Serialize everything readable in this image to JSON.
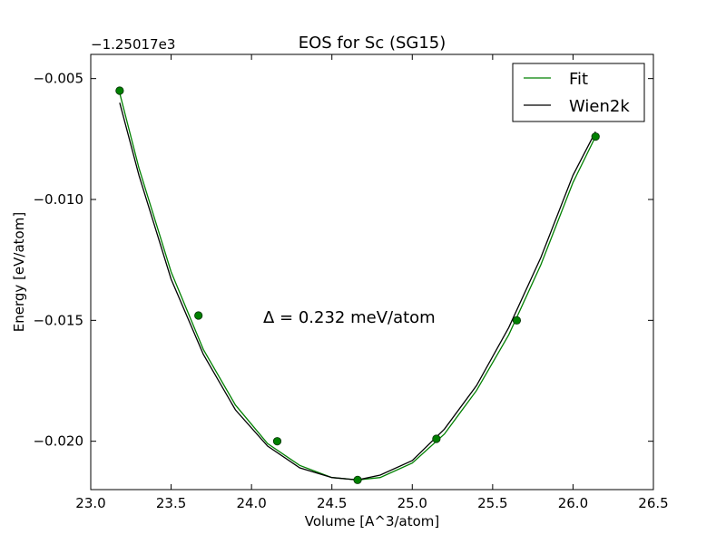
{
  "chart_data": {
    "type": "line",
    "title": "EOS for Sc (SG15)",
    "xlabel": "Volume [A^3/atom]",
    "ylabel": "Energy [eV/atom]",
    "offset_text": "−1.25017e3",
    "annotation": "Δ = 0.232 meV/atom",
    "xlim": [
      23.0,
      26.5
    ],
    "ylim": [
      -0.022,
      -0.004
    ],
    "x_ticks": [
      23.0,
      23.5,
      24.0,
      24.5,
      25.0,
      25.5,
      26.0,
      26.5
    ],
    "x_tick_labels": [
      "23.0",
      "23.5",
      "24.0",
      "24.5",
      "25.0",
      "25.5",
      "26.0",
      "26.5"
    ],
    "y_ticks": [
      -0.005,
      -0.01,
      -0.015,
      -0.02
    ],
    "y_tick_labels": [
      "−0.005",
      "−0.010",
      "−0.015",
      "−0.020"
    ],
    "legend_position": "top-right",
    "grid": false,
    "series": [
      {
        "name": "Fit",
        "kind": "line",
        "color": "#008000",
        "x": [
          23.18,
          23.3,
          23.5,
          23.7,
          23.9,
          24.1,
          24.3,
          24.5,
          24.66,
          24.8,
          25.0,
          25.2,
          25.4,
          25.6,
          25.8,
          26.0,
          26.14
        ],
        "y": [
          -0.0056,
          -0.0087,
          -0.013,
          -0.0162,
          -0.0185,
          -0.0201,
          -0.021,
          -0.0215,
          -0.0216,
          -0.0215,
          -0.0209,
          -0.0197,
          -0.0179,
          -0.0156,
          -0.0127,
          -0.0093,
          -0.0074
        ]
      },
      {
        "name": "Wien2k",
        "kind": "line",
        "color": "#000000",
        "x": [
          23.18,
          23.3,
          23.5,
          23.7,
          23.9,
          24.1,
          24.3,
          24.5,
          24.66,
          24.8,
          25.0,
          25.2,
          25.4,
          25.6,
          25.8,
          26.0,
          26.14
        ],
        "y": [
          -0.006,
          -0.009,
          -0.0133,
          -0.0164,
          -0.0187,
          -0.0202,
          -0.0211,
          -0.0215,
          -0.0216,
          -0.0214,
          -0.0208,
          -0.0195,
          -0.0177,
          -0.0153,
          -0.0124,
          -0.009,
          -0.0072
        ]
      },
      {
        "name": "",
        "kind": "scatter",
        "color": "#008000",
        "x": [
          23.18,
          23.67,
          24.16,
          24.66,
          25.15,
          25.65,
          26.14
        ],
        "y": [
          -0.0055,
          -0.0148,
          -0.02,
          -0.0216,
          -0.0199,
          -0.015,
          -0.0074
        ]
      }
    ]
  }
}
